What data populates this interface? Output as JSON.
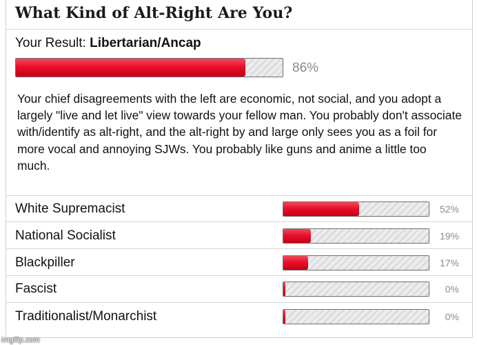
{
  "quiz": {
    "title": "What Kind of Alt-Right Are You?",
    "result_prefix": "Your Result:",
    "result_value": "Libertarian/Ancap",
    "result_percent_label": "86%",
    "result_percent": 86,
    "description": "Your chief disagreements with the left are economic, not social, and you adopt a largely \"live and let live\" view towards your fellow man. You probably don't associate with/identify as alt-right, and the alt-right by and large only sees you as a foil for more vocal and annoying SJWs. You probably like guns and anime a little too much."
  },
  "results": [
    {
      "label": "White Supremacist",
      "percent_label": "52%",
      "percent": 52
    },
    {
      "label": "National Socialist",
      "percent_label": "19%",
      "percent": 19
    },
    {
      "label": "Blackpiller",
      "percent_label": "17%",
      "percent": 17
    },
    {
      "label": "Fascist",
      "percent_label": "0%",
      "percent": 0
    },
    {
      "label": "Traditionalist/Monarchist",
      "percent_label": "0%",
      "percent": 0
    }
  ],
  "watermark": "imgflip.com",
  "colors": {
    "bar_fill": "#e8102b",
    "percent_text": "#8a8a8a"
  }
}
